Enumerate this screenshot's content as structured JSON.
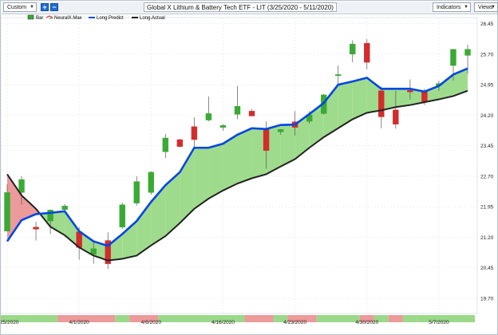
{
  "toolbar": {
    "period_label": "Custom",
    "plus_label": "+",
    "minus_label": "−",
    "title": "Global X Lithium & Battery Tech ETF - LIT (3/25/2020 - 5/11/2020)",
    "indicators_label": "Indicators",
    "views_label": "Views"
  },
  "chart_data": {
    "type": "candlestick",
    "title": "Global X Lithium & Battery Tech ETF - LIT (3/25/2020 - 5/11/2020)",
    "legend": [
      "Bar",
      "NeuralX.Max",
      "Long.Predict",
      "Long.Actual"
    ],
    "legend_position": "top-left",
    "x_labels": [
      {
        "index": 0,
        "label": "3/25/2020"
      },
      {
        "index": 5,
        "label": "4/1/2020"
      },
      {
        "index": 10,
        "label": "4/8/2020"
      },
      {
        "index": 15,
        "label": "4/16/2020"
      },
      {
        "index": 20,
        "label": "4/23/2020"
      },
      {
        "index": 25,
        "label": "4/30/2020"
      },
      {
        "index": 30,
        "label": "5/7/2020"
      }
    ],
    "y_ticks": [
      19.7,
      20.45,
      21.2,
      21.95,
      22.7,
      23.45,
      24.2,
      24.95,
      25.7,
      26.45
    ],
    "ylim": [
      19.7,
      26.6
    ],
    "grid": true,
    "series_colors": {
      "up": "#3aaa35",
      "down": "#d22c2c",
      "predict": "#0046e6",
      "actual": "#222222",
      "fill_above": "#9fdb8c",
      "fill_below": "#ec9a9a"
    },
    "bars": [
      {
        "open": 21.35,
        "high": 22.5,
        "low": 21.35,
        "close": 22.3
      },
      {
        "open": 22.3,
        "high": 22.7,
        "low": 22.0,
        "close": 22.62
      },
      {
        "open": 21.45,
        "high": 21.58,
        "low": 21.12,
        "close": 21.4
      },
      {
        "open": 21.6,
        "high": 21.88,
        "low": 21.28,
        "close": 21.87
      },
      {
        "open": 21.88,
        "high": 22.02,
        "low": 21.82,
        "close": 21.97
      },
      {
        "open": 21.33,
        "high": 21.45,
        "low": 20.65,
        "close": 20.95
      },
      {
        "open": 20.78,
        "high": 21.1,
        "low": 20.55,
        "close": 20.92
      },
      {
        "open": 21.12,
        "high": 21.32,
        "low": 20.42,
        "close": 20.55
      },
      {
        "open": 21.45,
        "high": 22.05,
        "low": 21.4,
        "close": 22.0
      },
      {
        "open": 22.04,
        "high": 22.7,
        "low": 21.98,
        "close": 22.57
      },
      {
        "open": 22.3,
        "high": 22.82,
        "low": 22.25,
        "close": 22.8
      },
      {
        "open": 23.3,
        "high": 23.74,
        "low": 23.15,
        "close": 23.64
      },
      {
        "open": 23.6,
        "high": 23.62,
        "low": 23.41,
        "close": 23.43
      },
      {
        "open": 23.92,
        "high": 24.15,
        "low": 23.41,
        "close": 23.6
      },
      {
        "open": 24.08,
        "high": 24.66,
        "low": 24.05,
        "close": 24.24
      },
      {
        "open": 23.9,
        "high": 23.98,
        "low": 23.82,
        "close": 23.95
      },
      {
        "open": 24.22,
        "high": 24.92,
        "low": 24.1,
        "close": 24.42
      },
      {
        "open": 24.3,
        "high": 24.35,
        "low": 24.18,
        "close": 24.18
      },
      {
        "open": 23.85,
        "high": 24.05,
        "low": 22.88,
        "close": 23.33
      },
      {
        "open": 23.79,
        "high": 23.86,
        "low": 23.72,
        "close": 23.85
      },
      {
        "open": 24.04,
        "high": 24.3,
        "low": 23.7,
        "close": 23.9
      },
      {
        "open": 24.05,
        "high": 24.3,
        "low": 23.99,
        "close": 24.21
      },
      {
        "open": 24.24,
        "high": 24.72,
        "low": 24.22,
        "close": 24.7
      },
      {
        "open": 25.2,
        "high": 25.42,
        "low": 24.92,
        "close": 25.2
      },
      {
        "open": 25.7,
        "high": 26.04,
        "low": 25.5,
        "close": 25.95
      },
      {
        "open": 25.97,
        "high": 26.07,
        "low": 25.33,
        "close": 25.5
      },
      {
        "open": 24.8,
        "high": 24.9,
        "low": 23.88,
        "close": 24.16
      },
      {
        "open": 24.33,
        "high": 24.8,
        "low": 23.87,
        "close": 23.98
      },
      {
        "open": 24.81,
        "high": 25.08,
        "low": 24.58,
        "close": 24.77
      },
      {
        "open": 24.8,
        "high": 24.85,
        "low": 24.45,
        "close": 24.53
      },
      {
        "open": 24.93,
        "high": 25.05,
        "low": 24.8,
        "close": 24.98
      },
      {
        "open": 25.42,
        "high": 25.8,
        "low": 25.05,
        "close": 25.82
      },
      {
        "open": 25.67,
        "high": 25.93,
        "low": 25.22,
        "close": 25.82
      }
    ],
    "long_predict": [
      21.1,
      21.62,
      21.77,
      21.8,
      21.84,
      21.35,
      21.1,
      20.99,
      21.28,
      21.6,
      22.07,
      22.48,
      22.8,
      23.4,
      23.4,
      23.5,
      23.72,
      23.88,
      23.86,
      23.96,
      23.97,
      24.23,
      24.5,
      24.95,
      25.03,
      25.12,
      24.85,
      24.85,
      24.85,
      24.78,
      24.92,
      25.2,
      25.35
    ],
    "long_actual": [
      22.75,
      22.23,
      21.9,
      21.46,
      21.25,
      20.95,
      20.75,
      20.63,
      20.67,
      20.75,
      21.0,
      21.23,
      21.55,
      21.9,
      22.15,
      22.35,
      22.52,
      22.65,
      22.75,
      22.94,
      23.12,
      23.4,
      23.66,
      23.88,
      24.1,
      24.26,
      24.32,
      24.4,
      24.45,
      24.52,
      24.59,
      24.67,
      24.8
    ],
    "neuralx_bands": [
      {
        "from": 0,
        "to": 3,
        "signal": "up"
      },
      {
        "from": 4,
        "to": 7,
        "signal": "down"
      },
      {
        "from": 8,
        "to": 8,
        "signal": "up"
      },
      {
        "from": 9,
        "to": 10,
        "signal": "down"
      },
      {
        "from": 11,
        "to": 16,
        "signal": "up"
      },
      {
        "from": 17,
        "to": 18,
        "signal": "down"
      },
      {
        "from": 19,
        "to": 19,
        "signal": "up"
      },
      {
        "from": 20,
        "to": 21,
        "signal": "down"
      },
      {
        "from": 22,
        "to": 24,
        "signal": "up"
      },
      {
        "from": 25,
        "to": 25,
        "signal": "down"
      },
      {
        "from": 26,
        "to": 26,
        "signal": "up"
      },
      {
        "from": 27,
        "to": 27,
        "signal": "down"
      },
      {
        "from": 28,
        "to": 28,
        "signal": "up"
      },
      {
        "from": 29,
        "to": 32,
        "signal": "up"
      }
    ]
  }
}
